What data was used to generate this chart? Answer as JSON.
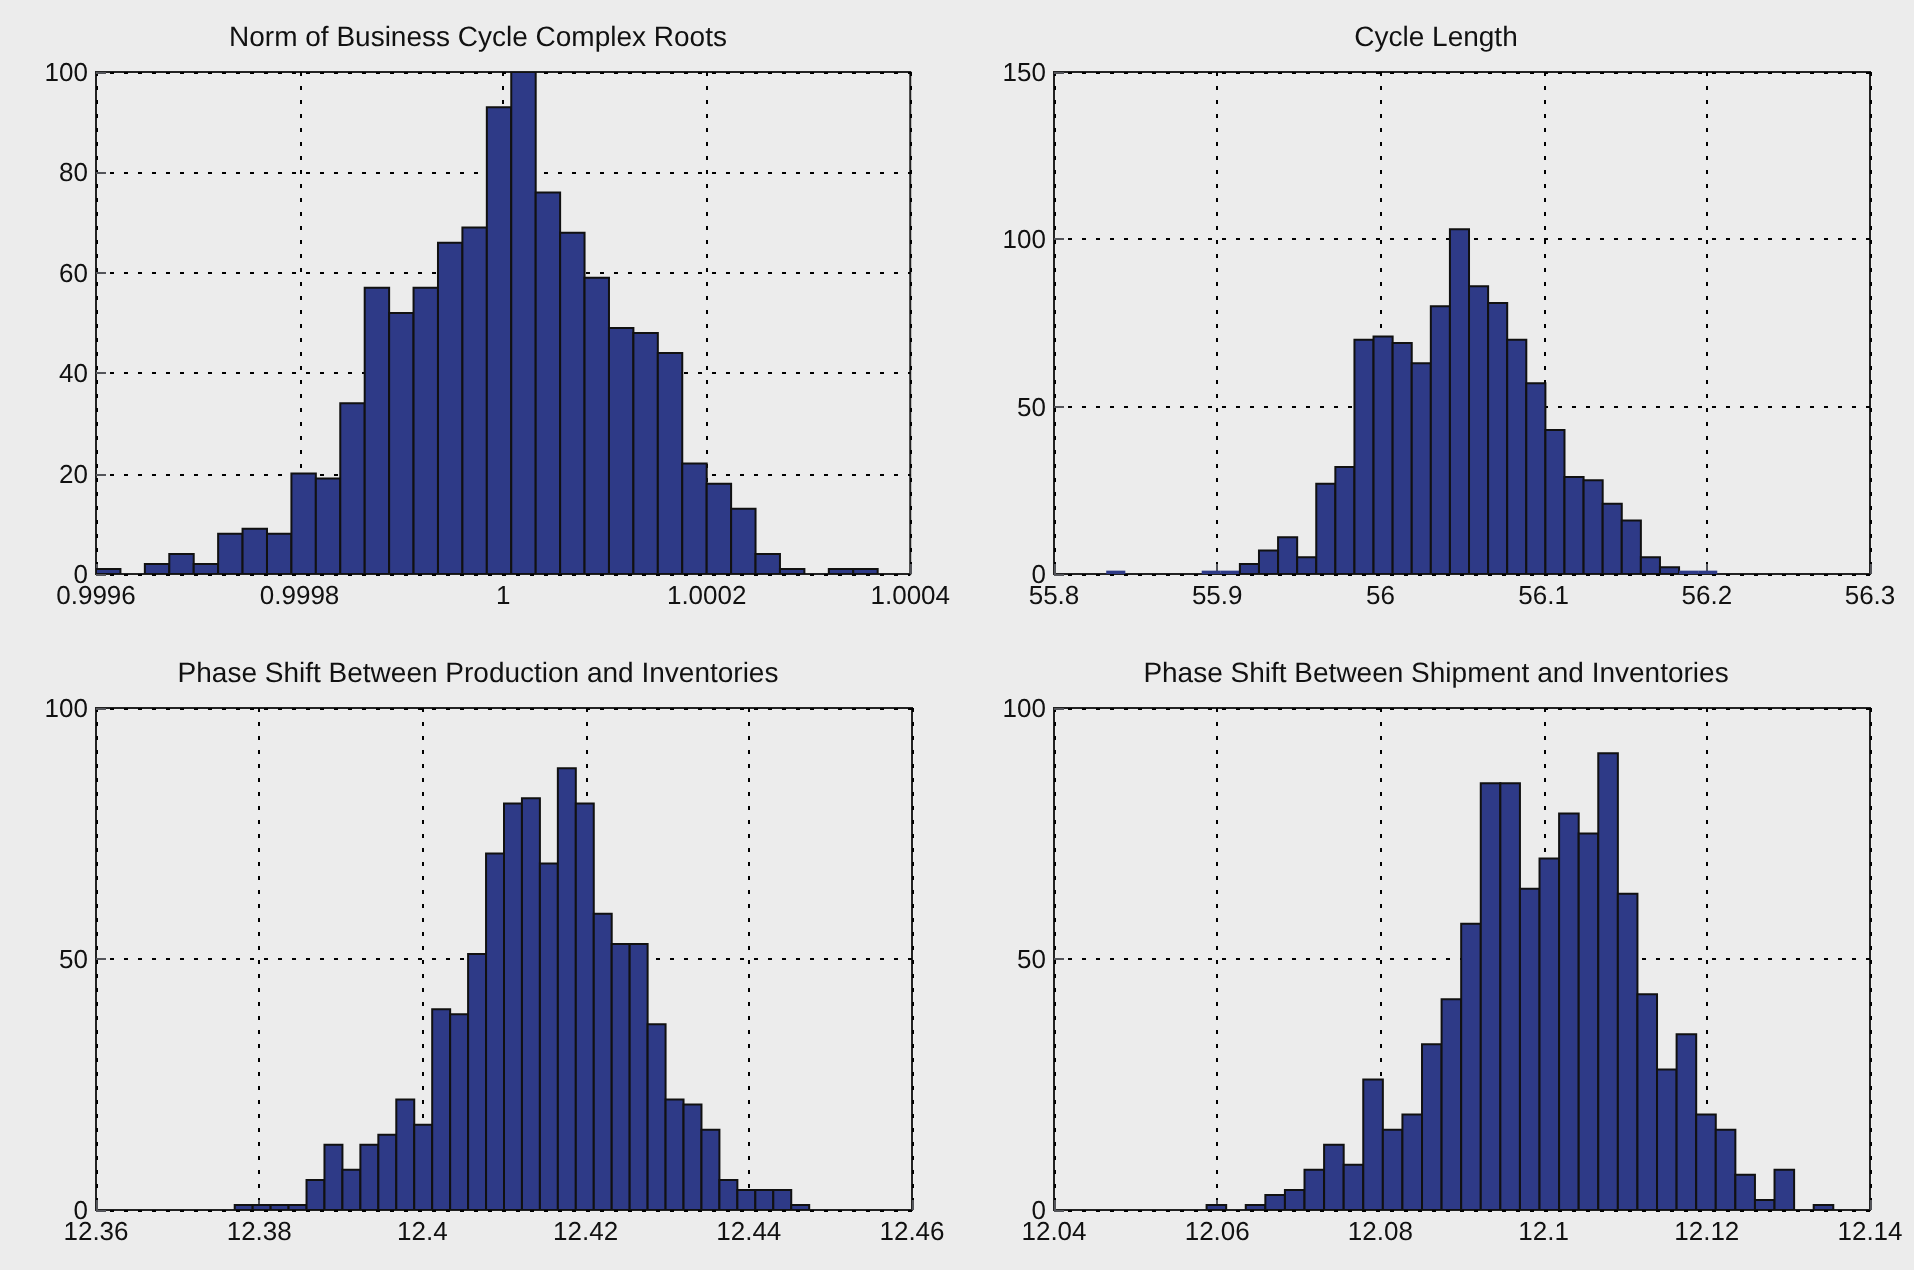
{
  "chart_data": [
    {
      "type": "histogram",
      "title": "Norm of Business Cycle Complex Roots",
      "color": "#2e3a87",
      "grid": true,
      "xlim": [
        0.9996,
        1.0004
      ],
      "xticks": [
        0.9996,
        0.9998,
        1,
        1.0002,
        1.0004
      ],
      "ylim": [
        0,
        100
      ],
      "yticks": [
        0,
        20,
        40,
        60,
        80,
        100
      ],
      "bins": [
        0.9996,
        0.999624,
        0.999648,
        0.999672,
        0.999696,
        0.99972,
        0.999744,
        0.999768,
        0.999792,
        0.999816,
        0.99984,
        0.999864,
        0.999888,
        0.999912,
        0.999936,
        0.99996,
        0.999984,
        1.000008,
        1.000032,
        1.000056,
        1.00008,
        1.000104,
        1.000128,
        1.000152,
        1.000176,
        1.0002,
        1.000224,
        1.000248,
        1.000272,
        1.000296,
        1.00032,
        1.000344,
        1.000368
      ],
      "values": [
        1,
        0,
        2,
        4,
        2,
        8,
        9,
        8,
        20,
        19,
        34,
        57,
        52,
        57,
        66,
        69,
        93,
        100,
        76,
        68,
        59,
        49,
        48,
        44,
        22,
        18,
        13,
        4,
        1,
        0,
        1,
        1
      ]
    },
    {
      "type": "histogram",
      "title": "Cycle Length",
      "color": "#2e3a87",
      "grid": true,
      "xlim": [
        55.8,
        56.3
      ],
      "xticks": [
        55.8,
        55.9,
        56,
        56.1,
        56.2,
        56.3
      ],
      "ylim": [
        0,
        150
      ],
      "yticks": [
        0,
        50,
        100,
        150
      ],
      "bins": [
        55.832,
        55.8437,
        55.8554,
        55.8671,
        55.8788,
        55.8905,
        55.9022,
        55.9139,
        55.9256,
        55.9373,
        55.949,
        55.9607,
        55.9724,
        55.9841,
        55.9958,
        56.0075,
        56.0192,
        56.0309,
        56.0426,
        56.0543,
        56.066,
        56.0777,
        56.0894,
        56.1011,
        56.1128,
        56.1245,
        56.1362,
        56.1479,
        56.1596,
        56.1713,
        56.183,
        56.1947,
        56.2064
      ],
      "values": [
        1,
        0,
        0,
        0,
        0,
        1,
        1,
        3,
        7,
        11,
        5,
        27,
        32,
        70,
        71,
        69,
        63,
        80,
        103,
        86,
        81,
        70,
        57,
        43,
        29,
        28,
        21,
        16,
        5,
        2,
        1,
        1
      ]
    },
    {
      "type": "histogram",
      "title": "Phase Shift Between Production and Inventories",
      "color": "#2e3a87",
      "grid": true,
      "xlim": [
        12.36,
        12.46
      ],
      "xticks": [
        12.36,
        12.38,
        12.4,
        12.42,
        12.44,
        12.46
      ],
      "ylim": [
        0,
        100
      ],
      "yticks": [
        0,
        50,
        100
      ],
      "bins": [
        12.377,
        12.3792,
        12.3814,
        12.3836,
        12.3858,
        12.388,
        12.3902,
        12.3924,
        12.3946,
        12.3968,
        12.399,
        12.4012,
        12.4034,
        12.4056,
        12.4078,
        12.41,
        12.4122,
        12.4144,
        12.4166,
        12.4188,
        12.421,
        12.4232,
        12.4254,
        12.4276,
        12.4298,
        12.432,
        12.4342,
        12.4364,
        12.4386,
        12.4408,
        12.443,
        12.4452,
        12.4474
      ],
      "values": [
        1,
        1,
        1,
        1,
        6,
        13,
        8,
        13,
        15,
        22,
        17,
        40,
        39,
        51,
        71,
        81,
        82,
        69,
        88,
        81,
        59,
        53,
        53,
        37,
        22,
        21,
        16,
        6,
        4,
        4,
        4,
        1
      ]
    },
    {
      "type": "histogram",
      "title": "Phase Shift Between Shipment and Inventories",
      "color": "#2e3a87",
      "grid": true,
      "xlim": [
        12.04,
        12.14
      ],
      "xticks": [
        12.04,
        12.06,
        12.08,
        12.1,
        12.12,
        12.14
      ],
      "ylim": [
        0,
        100
      ],
      "yticks": [
        0,
        50,
        100
      ],
      "bins": [
        12.0587,
        12.0611,
        12.0635,
        12.0659,
        12.0683,
        12.0707,
        12.0731,
        12.0755,
        12.0779,
        12.0803,
        12.0827,
        12.0851,
        12.0875,
        12.0899,
        12.0923,
        12.0947,
        12.0971,
        12.0995,
        12.1019,
        12.1043,
        12.1067,
        12.1091,
        12.1115,
        12.1139,
        12.1163,
        12.1187,
        12.1211,
        12.1235,
        12.1259,
        12.1283,
        12.1307,
        12.1331,
        12.1355
      ],
      "values": [
        1,
        0,
        1,
        3,
        4,
        8,
        13,
        9,
        26,
        16,
        19,
        33,
        42,
        57,
        85,
        85,
        64,
        70,
        79,
        75,
        91,
        63,
        43,
        28,
        35,
        19,
        16,
        7,
        2,
        8,
        0,
        1
      ]
    }
  ]
}
